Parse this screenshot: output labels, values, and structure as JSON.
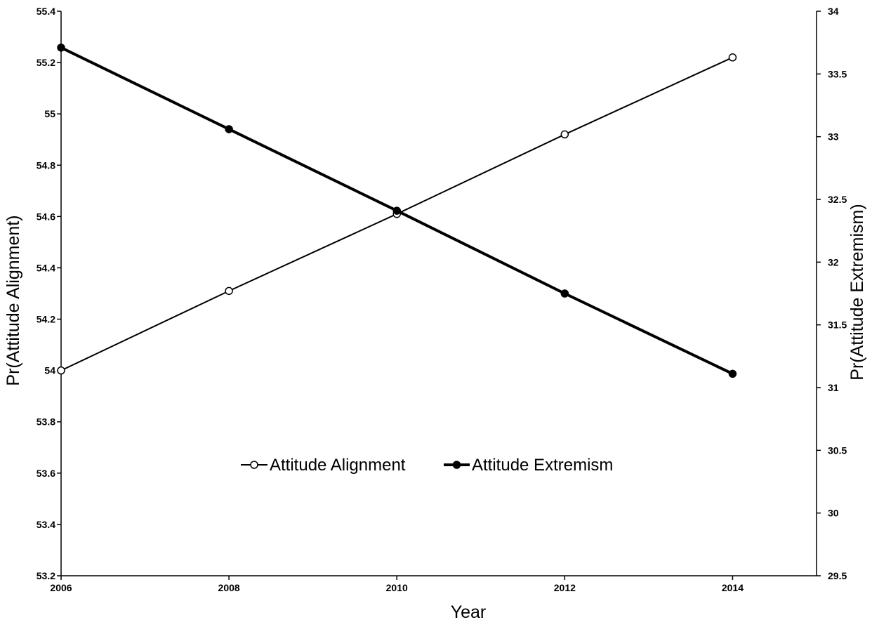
{
  "chart_data": {
    "type": "line",
    "xlabel": "Year",
    "ylabel_left": "Pr(Attitude Alignment)",
    "ylabel_right": "Pr(Attitude Extremism)",
    "x_ticks": [
      "2006",
      "2008",
      "2010",
      "2012",
      "2014"
    ],
    "xlim": [
      2006,
      2015
    ],
    "ylim_left": [
      53.2,
      55.4
    ],
    "ylim_right": [
      29.5,
      34
    ],
    "y_left_ticks": [
      "53.2",
      "53.4",
      "53.6",
      "53.8",
      "54",
      "54.2",
      "54.4",
      "54.6",
      "54.8",
      "55",
      "55.2",
      "55.4"
    ],
    "y_right_ticks": [
      "29.5",
      "30",
      "30.5",
      "31",
      "31.5",
      "32",
      "32.5",
      "33",
      "33.5",
      "34"
    ],
    "x": [
      2006,
      2008,
      2010,
      2012,
      2014
    ],
    "series": [
      {
        "name": "Attitude Alignment",
        "axis": "left",
        "marker": "open-circle",
        "values": [
          54.0,
          54.31,
          54.61,
          54.92,
          55.22
        ]
      },
      {
        "name": "Attitude Extremism",
        "axis": "right",
        "marker": "filled-circle",
        "values": [
          33.71,
          33.06,
          32.41,
          31.75,
          31.11
        ]
      }
    ],
    "legend_position": "center"
  }
}
